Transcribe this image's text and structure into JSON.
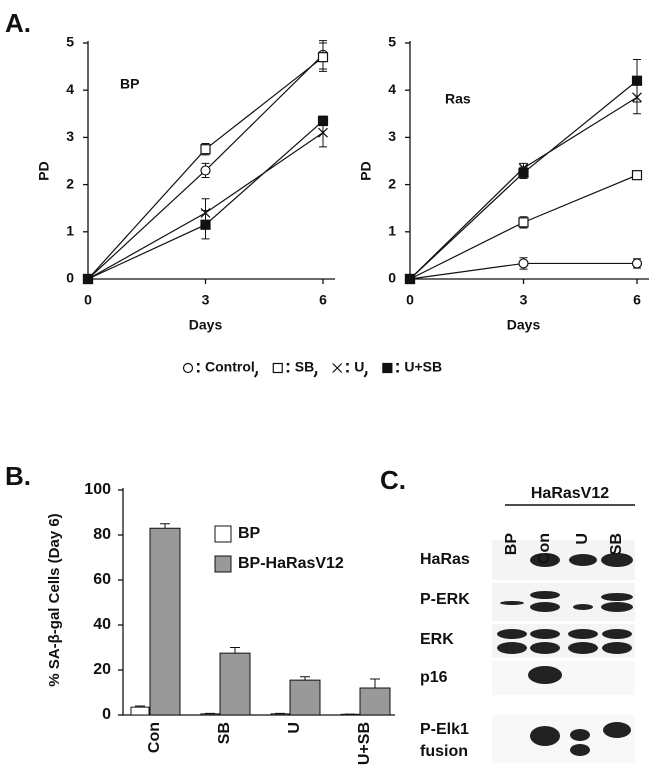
{
  "chart_data": [
    {
      "type": "line",
      "panel": "A.",
      "title": "BP",
      "xlabel": "Days",
      "ylabel": "PD",
      "x": [
        0,
        3,
        6
      ],
      "xlim": [
        0,
        6
      ],
      "ylim": [
        0,
        5
      ],
      "xticks": [
        0,
        3,
        6
      ],
      "yticks": [
        0,
        1,
        2,
        3,
        4,
        5
      ],
      "series": [
        {
          "name": "Control",
          "marker": "circle",
          "values": [
            0,
            2.3,
            4.75
          ],
          "errors": [
            0,
            0.15,
            0.3
          ]
        },
        {
          "name": "SB",
          "marker": "square",
          "values": [
            0,
            2.75,
            4.7
          ],
          "errors": [
            0,
            0.12,
            0.3
          ]
        },
        {
          "name": "U",
          "marker": "x",
          "values": [
            0,
            1.4,
            3.1
          ],
          "errors": [
            0,
            0.3,
            0.3
          ]
        },
        {
          "name": "U+SB",
          "marker": "filled-square",
          "values": [
            0,
            1.15,
            3.35
          ],
          "errors": [
            0,
            0.3,
            0.1
          ]
        }
      ]
    },
    {
      "type": "line",
      "title": "Ras",
      "xlabel": "Days",
      "ylabel": "PD",
      "x": [
        0,
        3,
        6
      ],
      "xlim": [
        0,
        6
      ],
      "ylim": [
        0,
        5
      ],
      "xticks": [
        0,
        3,
        6
      ],
      "yticks": [
        0,
        1,
        2,
        3,
        4,
        5
      ],
      "series": [
        {
          "marker": "circle",
          "values": [
            0,
            0.33,
            0.33
          ],
          "errors": [
            0,
            0.12,
            0.1
          ]
        },
        {
          "marker": "square",
          "values": [
            0,
            1.2,
            2.2
          ],
          "errors": [
            0,
            0.12,
            0.05
          ]
        },
        {
          "marker": "x",
          "values": [
            0,
            2.35,
            3.85
          ],
          "errors": [
            0,
            0.1,
            0.35
          ]
        },
        {
          "marker": "filled-square",
          "values": [
            0,
            2.25,
            4.2
          ],
          "errors": [
            0,
            0.12,
            0.45
          ]
        }
      ]
    },
    {
      "type": "bar",
      "panel": "B.",
      "ylabel": "% SA-β-gal Cells (Day 6)",
      "categories": [
        "Con",
        "SB",
        "U",
        "U+SB"
      ],
      "ylim": [
        0,
        100
      ],
      "yticks": [
        0,
        20,
        40,
        60,
        80,
        100
      ],
      "series": [
        {
          "name": "BP",
          "color": "#ffffff",
          "values": [
            3.5,
            0.5,
            0.5,
            0.3
          ],
          "errors": [
            0.5,
            0.2,
            0.2,
            0.1
          ]
        },
        {
          "name": "BP-HaRasV12",
          "color": "#999999",
          "values": [
            83,
            27.5,
            15.5,
            12
          ],
          "errors": [
            2,
            2.5,
            1.5,
            4
          ]
        }
      ]
    }
  ],
  "blot": {
    "panel": "C.",
    "group": "HaRasV12",
    "lanes": [
      "BP",
      "Con",
      "U",
      "SB"
    ],
    "rows": [
      "HaRas",
      "P-ERK",
      "ERK",
      "p16",
      "P-Elk1 fusion"
    ]
  }
}
